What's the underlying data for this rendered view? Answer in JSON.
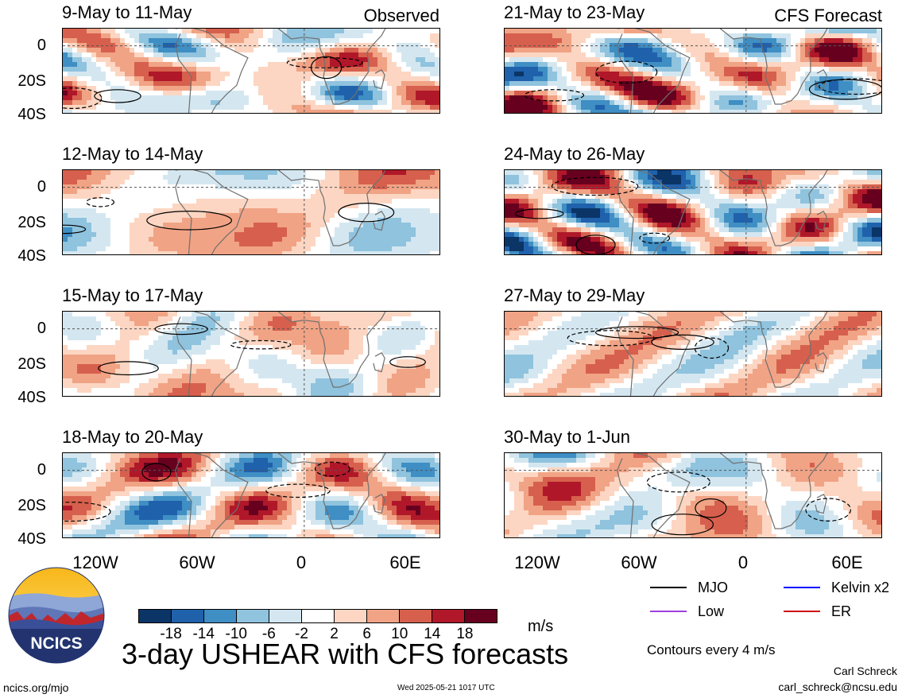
{
  "header": {
    "left_tag": "Observed",
    "right_tag": "CFS Forecast"
  },
  "chart_data": [
    {
      "type": "heatmap",
      "title": "9-May to 11-May",
      "column": "Observed",
      "yticks": [
        "0",
        "20S",
        "40S"
      ]
    },
    {
      "type": "heatmap",
      "title": "12-May to 14-May",
      "column": "Observed",
      "yticks": [
        "0",
        "20S",
        "40S"
      ]
    },
    {
      "type": "heatmap",
      "title": "15-May to 17-May",
      "column": "Observed",
      "yticks": [
        "0",
        "20S",
        "40S"
      ]
    },
    {
      "type": "heatmap",
      "title": "18-May to 20-May",
      "column": "Observed",
      "yticks": [
        "0",
        "20S",
        "40S"
      ]
    },
    {
      "type": "heatmap",
      "title": "21-May to 23-May",
      "column": "CFS Forecast"
    },
    {
      "type": "heatmap",
      "title": "24-May to 26-May",
      "column": "CFS Forecast"
    },
    {
      "type": "heatmap",
      "title": "27-May to 29-May",
      "column": "CFS Forecast"
    },
    {
      "type": "heatmap",
      "title": "30-May to 1-Jun",
      "column": "CFS Forecast"
    }
  ],
  "axes": {
    "xticks": [
      "120W",
      "60W",
      "0",
      "60E"
    ],
    "xtick_values": [
      -120,
      -60,
      0,
      60
    ],
    "yticks": [
      "0",
      "20S",
      "40S"
    ],
    "ytick_values": [
      0,
      -20,
      -40
    ],
    "xlim": [
      -150,
      85
    ],
    "ylim": [
      -40,
      10
    ]
  },
  "colorbar": {
    "labels": [
      "-18",
      "-14",
      "-10",
      "-6",
      "-2",
      "2",
      "6",
      "10",
      "14",
      "18"
    ],
    "colors": [
      "#0b3567",
      "#2061ac",
      "#3f8ec4",
      "#8fc3de",
      "#d4e7f1",
      "#ffffff",
      "#fcd6c2",
      "#f1a385",
      "#d6604d",
      "#b0182a",
      "#67001f"
    ],
    "units": "m/s"
  },
  "title": "3-day USHEAR with CFS forecasts",
  "legend": [
    {
      "label": "MJO",
      "color": "#000000"
    },
    {
      "label": "Kelvin x2",
      "color": "#0000ff"
    },
    {
      "label": "Low",
      "color": "#a040e0"
    },
    {
      "label": "ER",
      "color": "#d01010"
    }
  ],
  "contour_note": "Contours every 4 m/s",
  "logo_text": "NCICS",
  "footer": {
    "url": "ncics.org/mjo",
    "timestamp": "Wed 2025-05-21 1017 UTC",
    "author": "Carl Schreck",
    "email": "carl_schreck@ncsu.edu"
  }
}
